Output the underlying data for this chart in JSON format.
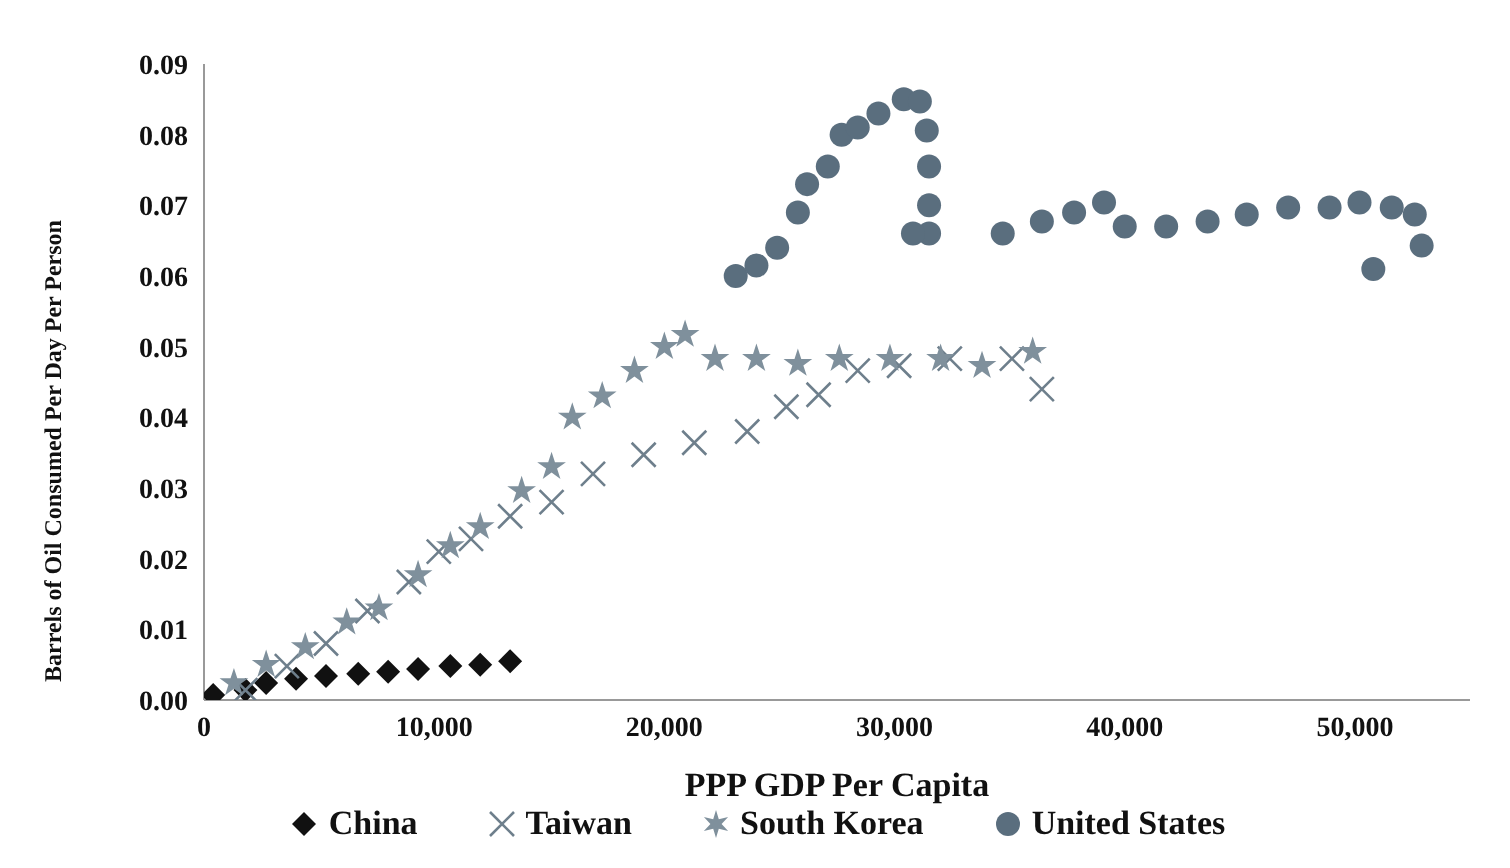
{
  "chart_data": {
    "type": "scatter",
    "xlabel": "PPP GDP Per Capita",
    "ylabel": "Barrels of Oil Consumed Per Day Per Person",
    "xlim": [
      0,
      55000
    ],
    "xticks": [
      0,
      {
        "value": 10000,
        "label": "10,000"
      },
      {
        "value": 20000,
        "label": "20,000"
      },
      {
        "value": 30000,
        "label": "30,000"
      },
      {
        "value": 40000,
        "label": "40,000"
      },
      {
        "value": 50000,
        "label": "50,000"
      }
    ],
    "ylim": [
      0,
      0.09
    ],
    "yticks": [
      {
        "value": 0,
        "label": "0.00"
      },
      {
        "value": 0.01,
        "label": "0.01"
      },
      {
        "value": 0.02,
        "label": "0.02"
      },
      {
        "value": 0.03,
        "label": "0.03"
      },
      {
        "value": 0.04,
        "label": "0.04"
      },
      {
        "value": 0.05,
        "label": "0.05"
      },
      {
        "value": 0.06,
        "label": "0.06"
      },
      {
        "value": 0.07,
        "label": "0.07"
      },
      {
        "value": 0.08,
        "label": "0.08"
      },
      {
        "value": 0.09,
        "label": "0.09"
      }
    ],
    "grid": false,
    "legend": "bottom",
    "series": [
      {
        "name": "China",
        "color": "#111111",
        "marker": "diamond",
        "x": [
          400,
          1800,
          2700,
          4000,
          5300,
          6700,
          8000,
          9300,
          10700,
          12000,
          13300
        ],
        "values": [
          0.0007,
          0.0014,
          0.0024,
          0.003,
          0.0034,
          0.0037,
          0.004,
          0.0044,
          0.0048,
          0.005,
          0.0055
        ]
      },
      {
        "name": "Taiwan",
        "color": "#6e7f8c",
        "marker": "cross",
        "x": [
          1800,
          3600,
          5300,
          7100,
          8900,
          10200,
          11600,
          13300,
          15100,
          16900,
          19100,
          21300,
          23600,
          25300,
          26700,
          28400,
          30200,
          32400,
          35100,
          36400
        ],
        "values": [
          0.0014,
          0.0048,
          0.008,
          0.0126,
          0.0167,
          0.021,
          0.0228,
          0.026,
          0.028,
          0.032,
          0.0347,
          0.0364,
          0.038,
          0.0415,
          0.0432,
          0.0466,
          0.0473,
          0.0483,
          0.0483,
          0.044
        ]
      },
      {
        "name": "South Korea",
        "color": "#7f909c",
        "marker": "star",
        "x": [
          1300,
          2700,
          4400,
          6200,
          7600,
          9300,
          10700,
          12000,
          13800,
          15100,
          16000,
          17300,
          18700,
          20000,
          20900,
          22200,
          24000,
          25800,
          27600,
          29800,
          32000,
          33800,
          36000
        ],
        "values": [
          0.0024,
          0.005,
          0.0075,
          0.011,
          0.013,
          0.0177,
          0.0218,
          0.0245,
          0.0296,
          0.033,
          0.04,
          0.043,
          0.0466,
          0.05,
          0.0517,
          0.0483,
          0.0483,
          0.0476,
          0.0483,
          0.0483,
          0.0483,
          0.0473,
          0.0493
        ]
      },
      {
        "name": "United States",
        "color": "#5a6e7e",
        "marker": "circle",
        "x": [
          23100,
          24000,
          24900,
          25800,
          26200,
          27100,
          27700,
          28400,
          29300,
          30400,
          31100,
          31400,
          31500,
          31500,
          31500,
          30800,
          34700,
          36400,
          37800,
          39100,
          40000,
          41800,
          43600,
          45300,
          47100,
          48900,
          50200,
          50800,
          51600,
          52600,
          52900
        ],
        "values": [
          0.06,
          0.0615,
          0.064,
          0.069,
          0.073,
          0.0755,
          0.08,
          0.081,
          0.083,
          0.085,
          0.0847,
          0.0806,
          0.0755,
          0.07,
          0.066,
          0.066,
          0.066,
          0.0677,
          0.069,
          0.0704,
          0.067,
          0.067,
          0.0677,
          0.0687,
          0.0697,
          0.0697,
          0.0704,
          0.061,
          0.0697,
          0.0687,
          0.0643
        ]
      }
    ]
  }
}
